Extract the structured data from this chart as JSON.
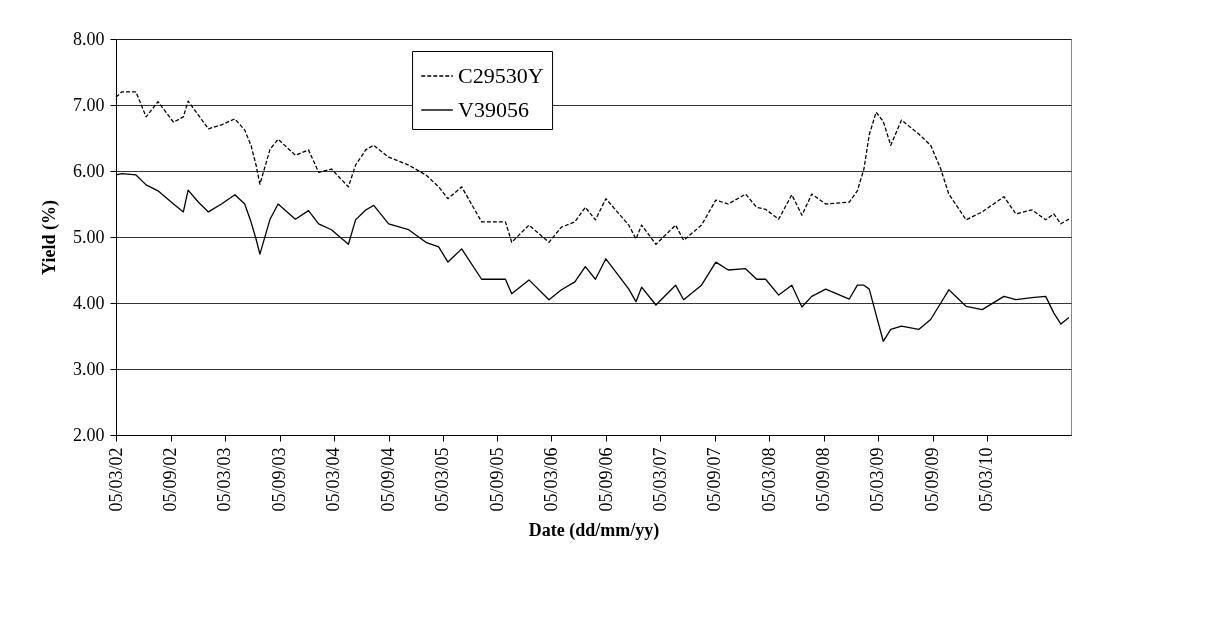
{
  "chart_data": {
    "type": "line",
    "xlabel": "Date (dd/mm/yy)",
    "ylabel": "Yield (%)",
    "x": [
      "2002-03-05",
      "2002-03-25",
      "2002-05-11",
      "2002-06-14",
      "2002-07-24",
      "2002-09-14",
      "2002-10-17",
      "2002-11-02",
      "2002-12-06",
      "2003-01-09",
      "2003-02-22",
      "2003-04-08",
      "2003-05-11",
      "2003-06-01",
      "2003-06-18",
      "2003-07-01",
      "2003-08-04",
      "2003-08-31",
      "2003-10-28",
      "2003-12-11",
      "2004-01-14",
      "2004-02-26",
      "2004-04-23",
      "2004-05-17",
      "2004-06-20",
      "2004-07-17",
      "2004-09-05",
      "2004-11-11",
      "2005-01-08",
      "2005-02-20",
      "2005-03-23",
      "2005-05-08",
      "2005-07-14",
      "2005-10-02",
      "2005-10-23",
      "2005-12-20",
      "2006-02-25",
      "2006-04-08",
      "2006-05-23",
      "2006-06-27",
      "2006-07-31",
      "2006-09-04",
      "2006-11-20",
      "2006-12-14",
      "2007-01-02",
      "2007-02-19",
      "2007-04-26",
      "2007-05-23",
      "2007-07-22",
      "2007-09-08",
      "2007-10-20",
      "2007-12-17",
      "2008-01-23",
      "2008-02-22",
      "2008-04-06",
      "2008-05-20",
      "2008-06-23",
      "2008-07-26",
      "2008-09-11",
      "2008-11-29",
      "2008-12-26",
      "2009-01-17",
      "2009-02-04",
      "2009-02-27",
      "2009-03-23",
      "2009-04-17",
      "2009-05-23",
      "2009-07-20",
      "2009-08-29",
      "2009-10-02",
      "2009-10-29",
      "2009-12-26",
      "2010-02-18",
      "2010-05-02",
      "2010-06-11",
      "2010-08-04",
      "2010-09-19",
      "2010-10-16",
      "2010-11-09",
      "2010-12-06"
    ],
    "series": [
      {
        "name": "C29530Y",
        "color": "#000000",
        "line_style": "dashed",
        "values": [
          7.12,
          7.2,
          7.2,
          6.82,
          7.05,
          6.74,
          6.82,
          7.06,
          6.85,
          6.64,
          6.7,
          6.79,
          6.62,
          6.39,
          6.09,
          5.8,
          6.33,
          6.48,
          6.24,
          6.32,
          5.98,
          6.03,
          5.76,
          6.09,
          6.32,
          6.39,
          6.21,
          6.09,
          5.94,
          5.76,
          5.58,
          5.76,
          5.23,
          5.23,
          4.92,
          5.18,
          4.92,
          5.15,
          5.23,
          5.45,
          5.26,
          5.58,
          5.18,
          4.97,
          5.18,
          4.89,
          5.18,
          4.95,
          5.18,
          5.56,
          5.5,
          5.65,
          5.45,
          5.42,
          5.27,
          5.64,
          5.33,
          5.65,
          5.5,
          5.53,
          5.7,
          6.03,
          6.55,
          6.89,
          6.75,
          6.39,
          6.77,
          6.56,
          6.39,
          6.03,
          5.65,
          5.26,
          5.38,
          5.61,
          5.35,
          5.41,
          5.26,
          5.35,
          5.2,
          5.27
        ]
      },
      {
        "name": "V39056",
        "color": "#000000",
        "line_style": "solid",
        "values": [
          5.94,
          5.96,
          5.94,
          5.79,
          5.7,
          5.5,
          5.38,
          5.71,
          5.53,
          5.38,
          5.5,
          5.64,
          5.5,
          5.23,
          4.97,
          4.74,
          5.27,
          5.5,
          5.27,
          5.4,
          5.2,
          5.11,
          4.89,
          5.26,
          5.41,
          5.48,
          5.2,
          5.11,
          4.92,
          4.85,
          4.62,
          4.82,
          4.36,
          4.36,
          4.14,
          4.35,
          4.05,
          4.2,
          4.32,
          4.55,
          4.36,
          4.67,
          4.21,
          4.02,
          4.24,
          3.97,
          4.27,
          4.05,
          4.27,
          4.62,
          4.5,
          4.52,
          4.36,
          4.36,
          4.12,
          4.27,
          3.94,
          4.1,
          4.21,
          4.06,
          4.27,
          4.27,
          4.21,
          3.82,
          3.42,
          3.6,
          3.65,
          3.6,
          3.75,
          4.0,
          4.2,
          3.95,
          3.9,
          4.1,
          4.05,
          4.08,
          4.1,
          3.85,
          3.68,
          3.78
        ]
      }
    ],
    "xlim": [
      "2002-03-05",
      "2010-12-13"
    ],
    "xticks": [
      {
        "value": "2002-03-05",
        "label": "05/03/02"
      },
      {
        "value": "2002-09-05",
        "label": "05/09/02"
      },
      {
        "value": "2003-03-05",
        "label": "05/03/03"
      },
      {
        "value": "2003-09-05",
        "label": "05/09/03"
      },
      {
        "value": "2004-03-05",
        "label": "05/03/04"
      },
      {
        "value": "2004-09-05",
        "label": "05/09/04"
      },
      {
        "value": "2005-03-05",
        "label": "05/03/05"
      },
      {
        "value": "2005-09-05",
        "label": "05/09/05"
      },
      {
        "value": "2006-03-05",
        "label": "05/03/06"
      },
      {
        "value": "2006-09-05",
        "label": "05/09/06"
      },
      {
        "value": "2007-03-05",
        "label": "05/03/07"
      },
      {
        "value": "2007-09-05",
        "label": "05/09/07"
      },
      {
        "value": "2008-03-05",
        "label": "05/03/08"
      },
      {
        "value": "2008-09-05",
        "label": "05/09/08"
      },
      {
        "value": "2009-03-05",
        "label": "05/03/09"
      },
      {
        "value": "2009-09-05",
        "label": "05/09/09"
      },
      {
        "value": "2010-03-05",
        "label": "05/03/10"
      }
    ],
    "ylim": [
      2,
      8
    ],
    "yticks": [
      {
        "value": 2,
        "label": "2.00"
      },
      {
        "value": 3,
        "label": "3.00"
      },
      {
        "value": 4,
        "label": "4.00"
      },
      {
        "value": 5,
        "label": "5.00"
      },
      {
        "value": 6,
        "label": "6.00"
      },
      {
        "value": 7,
        "label": "7.00"
      },
      {
        "value": 8,
        "label": "8.00"
      }
    ],
    "grid": "y",
    "legend": "top"
  }
}
